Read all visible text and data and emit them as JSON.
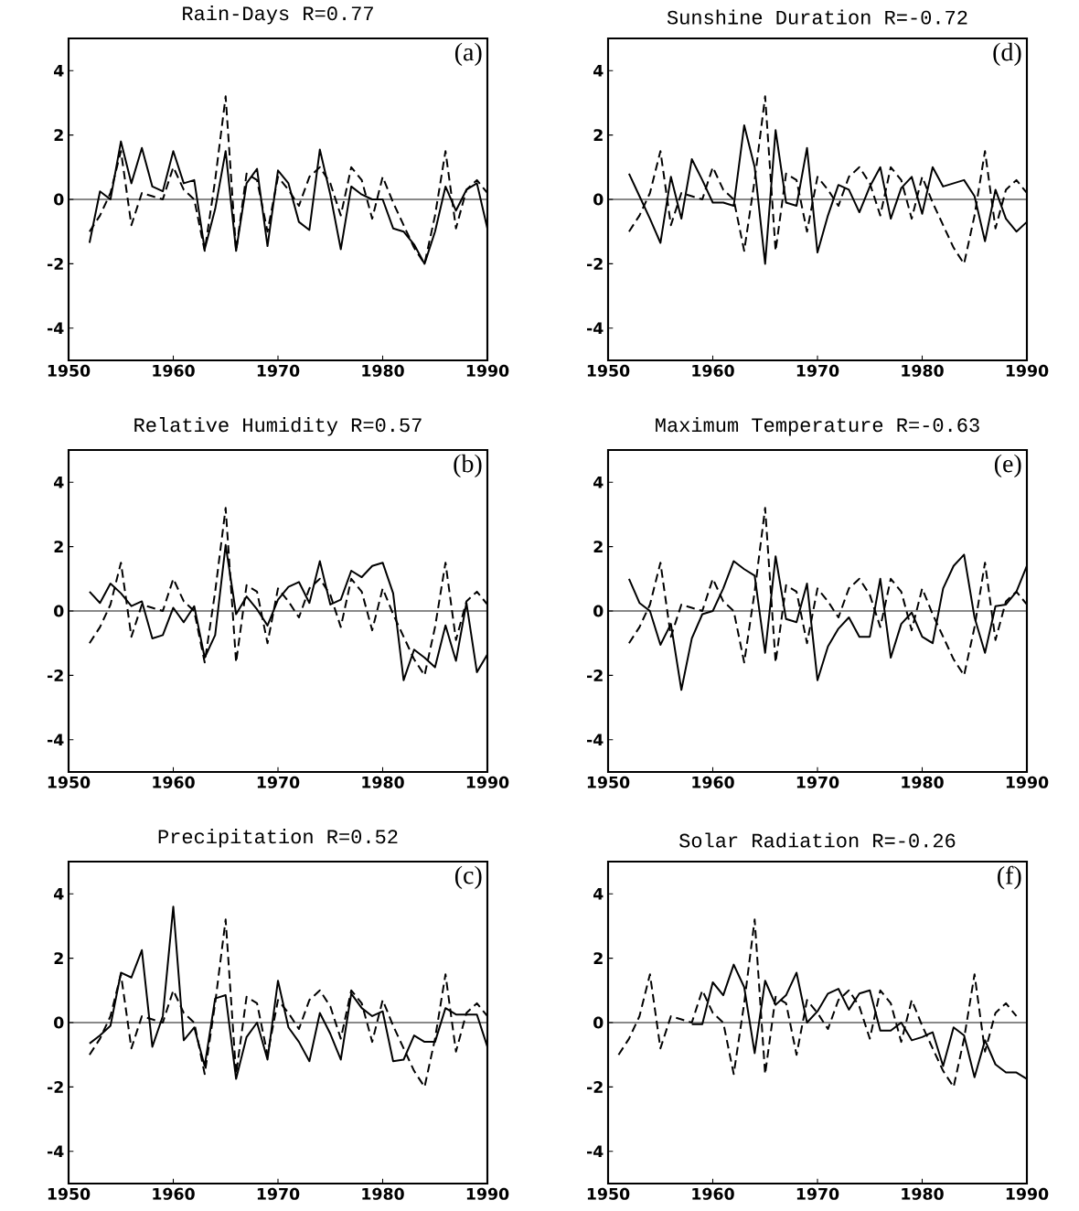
{
  "chart_data": [
    {
      "type": "line",
      "title": "Rain-Days  R=0.77",
      "annotations": [
        "(a)"
      ],
      "xlim": [
        1950,
        1990
      ],
      "ylim": [
        -5,
        5
      ],
      "xticks": [
        1950,
        1960,
        1970,
        1980,
        1990
      ],
      "yticks": [
        -4,
        -2,
        0,
        2,
        4
      ],
      "ref_lines": [
        {
          "axis": "y",
          "value": 0
        }
      ],
      "x": [
        1952,
        1953,
        1954,
        1955,
        1956,
        1957,
        1958,
        1959,
        1960,
        1961,
        1962,
        1963,
        1964,
        1965,
        1966,
        1967,
        1968,
        1969,
        1970,
        1971,
        1972,
        1973,
        1974,
        1975,
        1976,
        1977,
        1978,
        1979,
        1980,
        1981,
        1982,
        1983,
        1984,
        1985,
        1986,
        1987,
        1988,
        1989,
        1990
      ],
      "series": [
        {
          "color": "#000000",
          "line_style": "solid",
          "values": [
            -1.35,
            0.25,
            0.0,
            1.8,
            0.5,
            1.6,
            0.4,
            0.25,
            1.5,
            0.5,
            0.6,
            -1.55,
            -0.3,
            1.5,
            -1.6,
            0.5,
            0.95,
            -1.45,
            0.9,
            0.5,
            -0.7,
            -0.95,
            1.55,
            0.15,
            -1.55,
            0.4,
            0.15,
            0.0,
            0.0,
            -0.9,
            -1.0,
            -1.4,
            -2.0,
            -1.0,
            0.4,
            -0.35,
            0.3,
            0.5,
            -0.9
          ]
        },
        {
          "color": "#000000",
          "line_style": "dashed",
          "values": [
            -1.0,
            -0.5,
            0.2,
            1.5,
            -0.8,
            0.2,
            0.1,
            0.0,
            1.0,
            0.3,
            0.0,
            -1.6,
            0.6,
            3.2,
            -1.6,
            0.8,
            0.6,
            -1.0,
            0.7,
            0.3,
            -0.2,
            0.7,
            1.0,
            0.5,
            -0.5,
            1.0,
            0.6,
            -0.6,
            0.7,
            -0.1,
            -0.8,
            -1.5,
            -2.0,
            -0.5,
            1.5,
            -0.9,
            0.3,
            0.6,
            0.2
          ]
        }
      ]
    },
    {
      "type": "line",
      "title": "Sunshine Duration  R=-0.72",
      "annotations": [
        "(d)"
      ],
      "xlim": [
        1950,
        1990
      ],
      "ylim": [
        -5,
        5
      ],
      "xticks": [
        1950,
        1960,
        1970,
        1980,
        1990
      ],
      "yticks": [
        -4,
        -2,
        0,
        2,
        4
      ],
      "ref_lines": [
        {
          "axis": "y",
          "value": 0
        }
      ],
      "x": [
        1952,
        1953,
        1954,
        1955,
        1956,
        1957,
        1958,
        1959,
        1960,
        1961,
        1962,
        1963,
        1964,
        1965,
        1966,
        1967,
        1968,
        1969,
        1970,
        1971,
        1972,
        1973,
        1974,
        1975,
        1976,
        1977,
        1978,
        1979,
        1980,
        1981,
        1982,
        1983,
        1984,
        1985,
        1986,
        1987,
        1988,
        1989,
        1990
      ],
      "series": [
        {
          "color": "#000000",
          "line_style": "solid",
          "values": [
            0.8,
            0.1,
            -0.6,
            -1.35,
            0.7,
            -0.6,
            1.25,
            0.6,
            -0.1,
            -0.1,
            -0.2,
            2.3,
            1.0,
            -2.0,
            2.15,
            -0.1,
            -0.2,
            1.6,
            -1.65,
            -0.5,
            0.45,
            0.3,
            -0.4,
            0.4,
            1.0,
            -0.6,
            0.35,
            0.7,
            -0.45,
            1.0,
            0.4,
            0.5,
            0.6,
            0.1,
            -1.3,
            0.3,
            -0.6,
            -1.0,
            -0.7
          ]
        },
        {
          "color": "#000000",
          "line_style": "dashed",
          "values": [
            -1.0,
            -0.5,
            0.2,
            1.5,
            -0.8,
            0.2,
            0.1,
            0.0,
            1.0,
            0.3,
            0.0,
            -1.6,
            0.6,
            3.2,
            -1.6,
            0.8,
            0.6,
            -1.0,
            0.7,
            0.3,
            -0.2,
            0.7,
            1.0,
            0.5,
            -0.5,
            1.0,
            0.6,
            -0.6,
            0.7,
            -0.1,
            -0.8,
            -1.5,
            -2.0,
            -0.5,
            1.5,
            -0.9,
            0.3,
            0.6,
            0.2
          ]
        }
      ]
    },
    {
      "type": "line",
      "title": "Relative Humidity  R=0.57",
      "annotations": [
        "(b)"
      ],
      "xlim": [
        1950,
        1990
      ],
      "ylim": [
        -5,
        5
      ],
      "xticks": [
        1950,
        1960,
        1970,
        1980,
        1990
      ],
      "yticks": [
        -4,
        -2,
        0,
        2,
        4
      ],
      "ref_lines": [
        {
          "axis": "y",
          "value": 0
        }
      ],
      "x": [
        1952,
        1953,
        1954,
        1955,
        1956,
        1957,
        1958,
        1959,
        1960,
        1961,
        1962,
        1963,
        1964,
        1965,
        1966,
        1967,
        1968,
        1969,
        1970,
        1971,
        1972,
        1973,
        1974,
        1975,
        1976,
        1977,
        1978,
        1979,
        1980,
        1981,
        1982,
        1983,
        1984,
        1985,
        1986,
        1987,
        1988,
        1989,
        1990
      ],
      "series": [
        {
          "color": "#000000",
          "line_style": "solid",
          "values": [
            0.6,
            0.25,
            0.85,
            0.55,
            0.15,
            0.3,
            -0.85,
            -0.75,
            0.1,
            -0.35,
            0.15,
            -1.45,
            -0.75,
            2.05,
            -0.1,
            0.45,
            0.05,
            -0.45,
            0.35,
            0.75,
            0.9,
            0.25,
            1.55,
            0.2,
            0.35,
            1.25,
            1.05,
            1.4,
            1.5,
            0.55,
            -2.15,
            -1.2,
            -1.45,
            -1.75,
            -0.45,
            -1.55,
            0.25,
            -1.9,
            -1.35
          ]
        },
        {
          "color": "#000000",
          "line_style": "dashed",
          "values": [
            -1.0,
            -0.5,
            0.2,
            1.5,
            -0.8,
            0.2,
            0.1,
            0.0,
            1.0,
            0.3,
            0.0,
            -1.6,
            0.6,
            3.2,
            -1.6,
            0.8,
            0.6,
            -1.0,
            0.7,
            0.3,
            -0.2,
            0.7,
            1.0,
            0.5,
            -0.5,
            1.0,
            0.6,
            -0.6,
            0.7,
            -0.1,
            -0.8,
            -1.5,
            -2.0,
            -0.5,
            1.5,
            -0.9,
            0.3,
            0.6,
            0.2
          ]
        }
      ]
    },
    {
      "type": "line",
      "title": "Maximum Temperature  R=-0.63",
      "annotations": [
        "(e)"
      ],
      "xlim": [
        1950,
        1990
      ],
      "ylim": [
        -5,
        5
      ],
      "xticks": [
        1950,
        1960,
        1970,
        1980,
        1990
      ],
      "yticks": [
        -4,
        -2,
        0,
        2,
        4
      ],
      "ref_lines": [
        {
          "axis": "y",
          "value": 0
        }
      ],
      "x": [
        1952,
        1953,
        1954,
        1955,
        1956,
        1957,
        1958,
        1959,
        1960,
        1961,
        1962,
        1963,
        1964,
        1965,
        1966,
        1967,
        1968,
        1969,
        1970,
        1971,
        1972,
        1973,
        1974,
        1975,
        1976,
        1977,
        1978,
        1979,
        1980,
        1981,
        1982,
        1983,
        1984,
        1985,
        1986,
        1987,
        1988,
        1989,
        1990
      ],
      "series": [
        {
          "color": "#000000",
          "line_style": "solid",
          "values": [
            1.0,
            0.25,
            0.0,
            -1.05,
            -0.4,
            -2.45,
            -0.85,
            -0.1,
            0.0,
            0.7,
            1.55,
            1.3,
            1.1,
            -1.3,
            1.7,
            -0.25,
            -0.35,
            0.85,
            -2.15,
            -1.1,
            -0.55,
            -0.2,
            -0.8,
            -0.8,
            1.0,
            -1.45,
            -0.4,
            -0.05,
            -0.8,
            -1.0,
            0.7,
            1.4,
            1.75,
            -0.2,
            -1.3,
            0.15,
            0.2,
            0.6,
            1.4
          ]
        },
        {
          "color": "#000000",
          "line_style": "dashed",
          "values": [
            -1.0,
            -0.5,
            0.2,
            1.5,
            -0.8,
            0.2,
            0.1,
            0.0,
            1.0,
            0.3,
            0.0,
            -1.6,
            0.6,
            3.2,
            -1.6,
            0.8,
            0.6,
            -1.0,
            0.7,
            0.3,
            -0.2,
            0.7,
            1.0,
            0.5,
            -0.5,
            1.0,
            0.6,
            -0.6,
            0.7,
            -0.1,
            -0.8,
            -1.5,
            -2.0,
            -0.5,
            1.5,
            -0.9,
            0.3,
            0.6,
            0.2
          ]
        }
      ]
    },
    {
      "type": "line",
      "title": "Precipitation  R=0.52",
      "annotations": [
        "(c)"
      ],
      "xlim": [
        1950,
        1990
      ],
      "ylim": [
        -5,
        5
      ],
      "xticks": [
        1950,
        1960,
        1970,
        1980,
        1990
      ],
      "yticks": [
        -4,
        -2,
        0,
        2,
        4
      ],
      "ref_lines": [
        {
          "axis": "y",
          "value": 0
        }
      ],
      "x": [
        1952,
        1953,
        1954,
        1955,
        1956,
        1957,
        1958,
        1959,
        1960,
        1961,
        1962,
        1963,
        1964,
        1965,
        1966,
        1967,
        1968,
        1969,
        1970,
        1971,
        1972,
        1973,
        1974,
        1975,
        1976,
        1977,
        1978,
        1979,
        1980,
        1981,
        1982,
        1983,
        1984,
        1985,
        1986,
        1987,
        1988,
        1989,
        1990
      ],
      "series": [
        {
          "color": "#000000",
          "line_style": "solid",
          "values": [
            -0.65,
            -0.4,
            -0.1,
            1.55,
            1.4,
            2.25,
            -0.75,
            0.2,
            3.6,
            -0.55,
            -0.15,
            -1.35,
            0.75,
            0.85,
            -1.75,
            -0.45,
            0.0,
            -1.15,
            1.3,
            -0.15,
            -0.6,
            -1.2,
            0.3,
            -0.35,
            -1.15,
            0.9,
            0.45,
            0.2,
            0.35,
            -1.2,
            -1.15,
            -0.4,
            -0.6,
            -0.6,
            0.45,
            0.25,
            0.25,
            0.25,
            -0.75
          ]
        },
        {
          "color": "#000000",
          "line_style": "dashed",
          "values": [
            -1.0,
            -0.5,
            0.2,
            1.5,
            -0.8,
            0.2,
            0.1,
            0.0,
            1.0,
            0.3,
            0.0,
            -1.6,
            0.6,
            3.2,
            -1.6,
            0.8,
            0.6,
            -1.0,
            0.7,
            0.3,
            -0.2,
            0.7,
            1.0,
            0.5,
            -0.5,
            1.0,
            0.6,
            -0.6,
            0.7,
            -0.1,
            -0.8,
            -1.5,
            -2.0,
            -0.5,
            1.5,
            -0.9,
            0.3,
            0.6,
            0.2
          ]
        }
      ]
    },
    {
      "type": "line",
      "title": "Solar Radiation  R=-0.26",
      "annotations": [
        "(f)"
      ],
      "xlim": [
        1950,
        1990
      ],
      "ylim": [
        -5,
        5
      ],
      "xticks": [
        1950,
        1960,
        1970,
        1980,
        1990
      ],
      "yticks": [
        -4,
        -2,
        0,
        2,
        4
      ],
      "ref_lines": [
        {
          "axis": "y",
          "value": 0
        }
      ],
      "series": [
        {
          "color": "#000000",
          "line_style": "solid",
          "x": [
            1958,
            1959,
            1960,
            1961,
            1962,
            1963,
            1964,
            1965,
            1966,
            1967,
            1968,
            1969,
            1970,
            1971,
            1972,
            1973,
            1974,
            1975,
            1976,
            1977,
            1978,
            1979,
            1980,
            1981,
            1982,
            1983,
            1984,
            1985,
            1986,
            1987,
            1988,
            1989,
            1990
          ],
          "values": [
            -0.05,
            -0.05,
            1.25,
            0.85,
            1.8,
            1.1,
            -0.95,
            1.3,
            0.55,
            0.85,
            1.55,
            0.0,
            0.35,
            0.9,
            1.05,
            0.4,
            0.9,
            1.0,
            -0.25,
            -0.25,
            0.0,
            -0.55,
            -0.45,
            -0.3,
            -1.35,
            -0.15,
            -0.4,
            -1.7,
            -0.55,
            -1.3,
            -1.55,
            -1.55,
            -1.75
          ]
        },
        {
          "color": "#000000",
          "line_style": "dashed",
          "x": [
            1951,
            1952,
            1953,
            1954,
            1955,
            1956,
            1957,
            1958,
            1959,
            1960,
            1961,
            1962,
            1963,
            1964,
            1965,
            1966,
            1967,
            1968,
            1969,
            1970,
            1971,
            1972,
            1973,
            1974,
            1975,
            1976,
            1977,
            1978,
            1979,
            1980,
            1981,
            1982,
            1983,
            1984,
            1985,
            1986,
            1987,
            1988,
            1989
          ],
          "values": [
            -1.0,
            -0.5,
            0.2,
            1.5,
            -0.8,
            0.2,
            0.1,
            0.0,
            1.0,
            0.3,
            0.0,
            -1.6,
            0.6,
            3.2,
            -1.6,
            0.8,
            0.6,
            -1.0,
            0.7,
            0.3,
            -0.2,
            0.7,
            1.0,
            0.5,
            -0.5,
            1.0,
            0.6,
            -0.6,
            0.7,
            -0.1,
            -0.8,
            -1.5,
            -2.0,
            -0.5,
            1.5,
            -0.9,
            0.3,
            0.6,
            0.2
          ]
        }
      ]
    }
  ]
}
